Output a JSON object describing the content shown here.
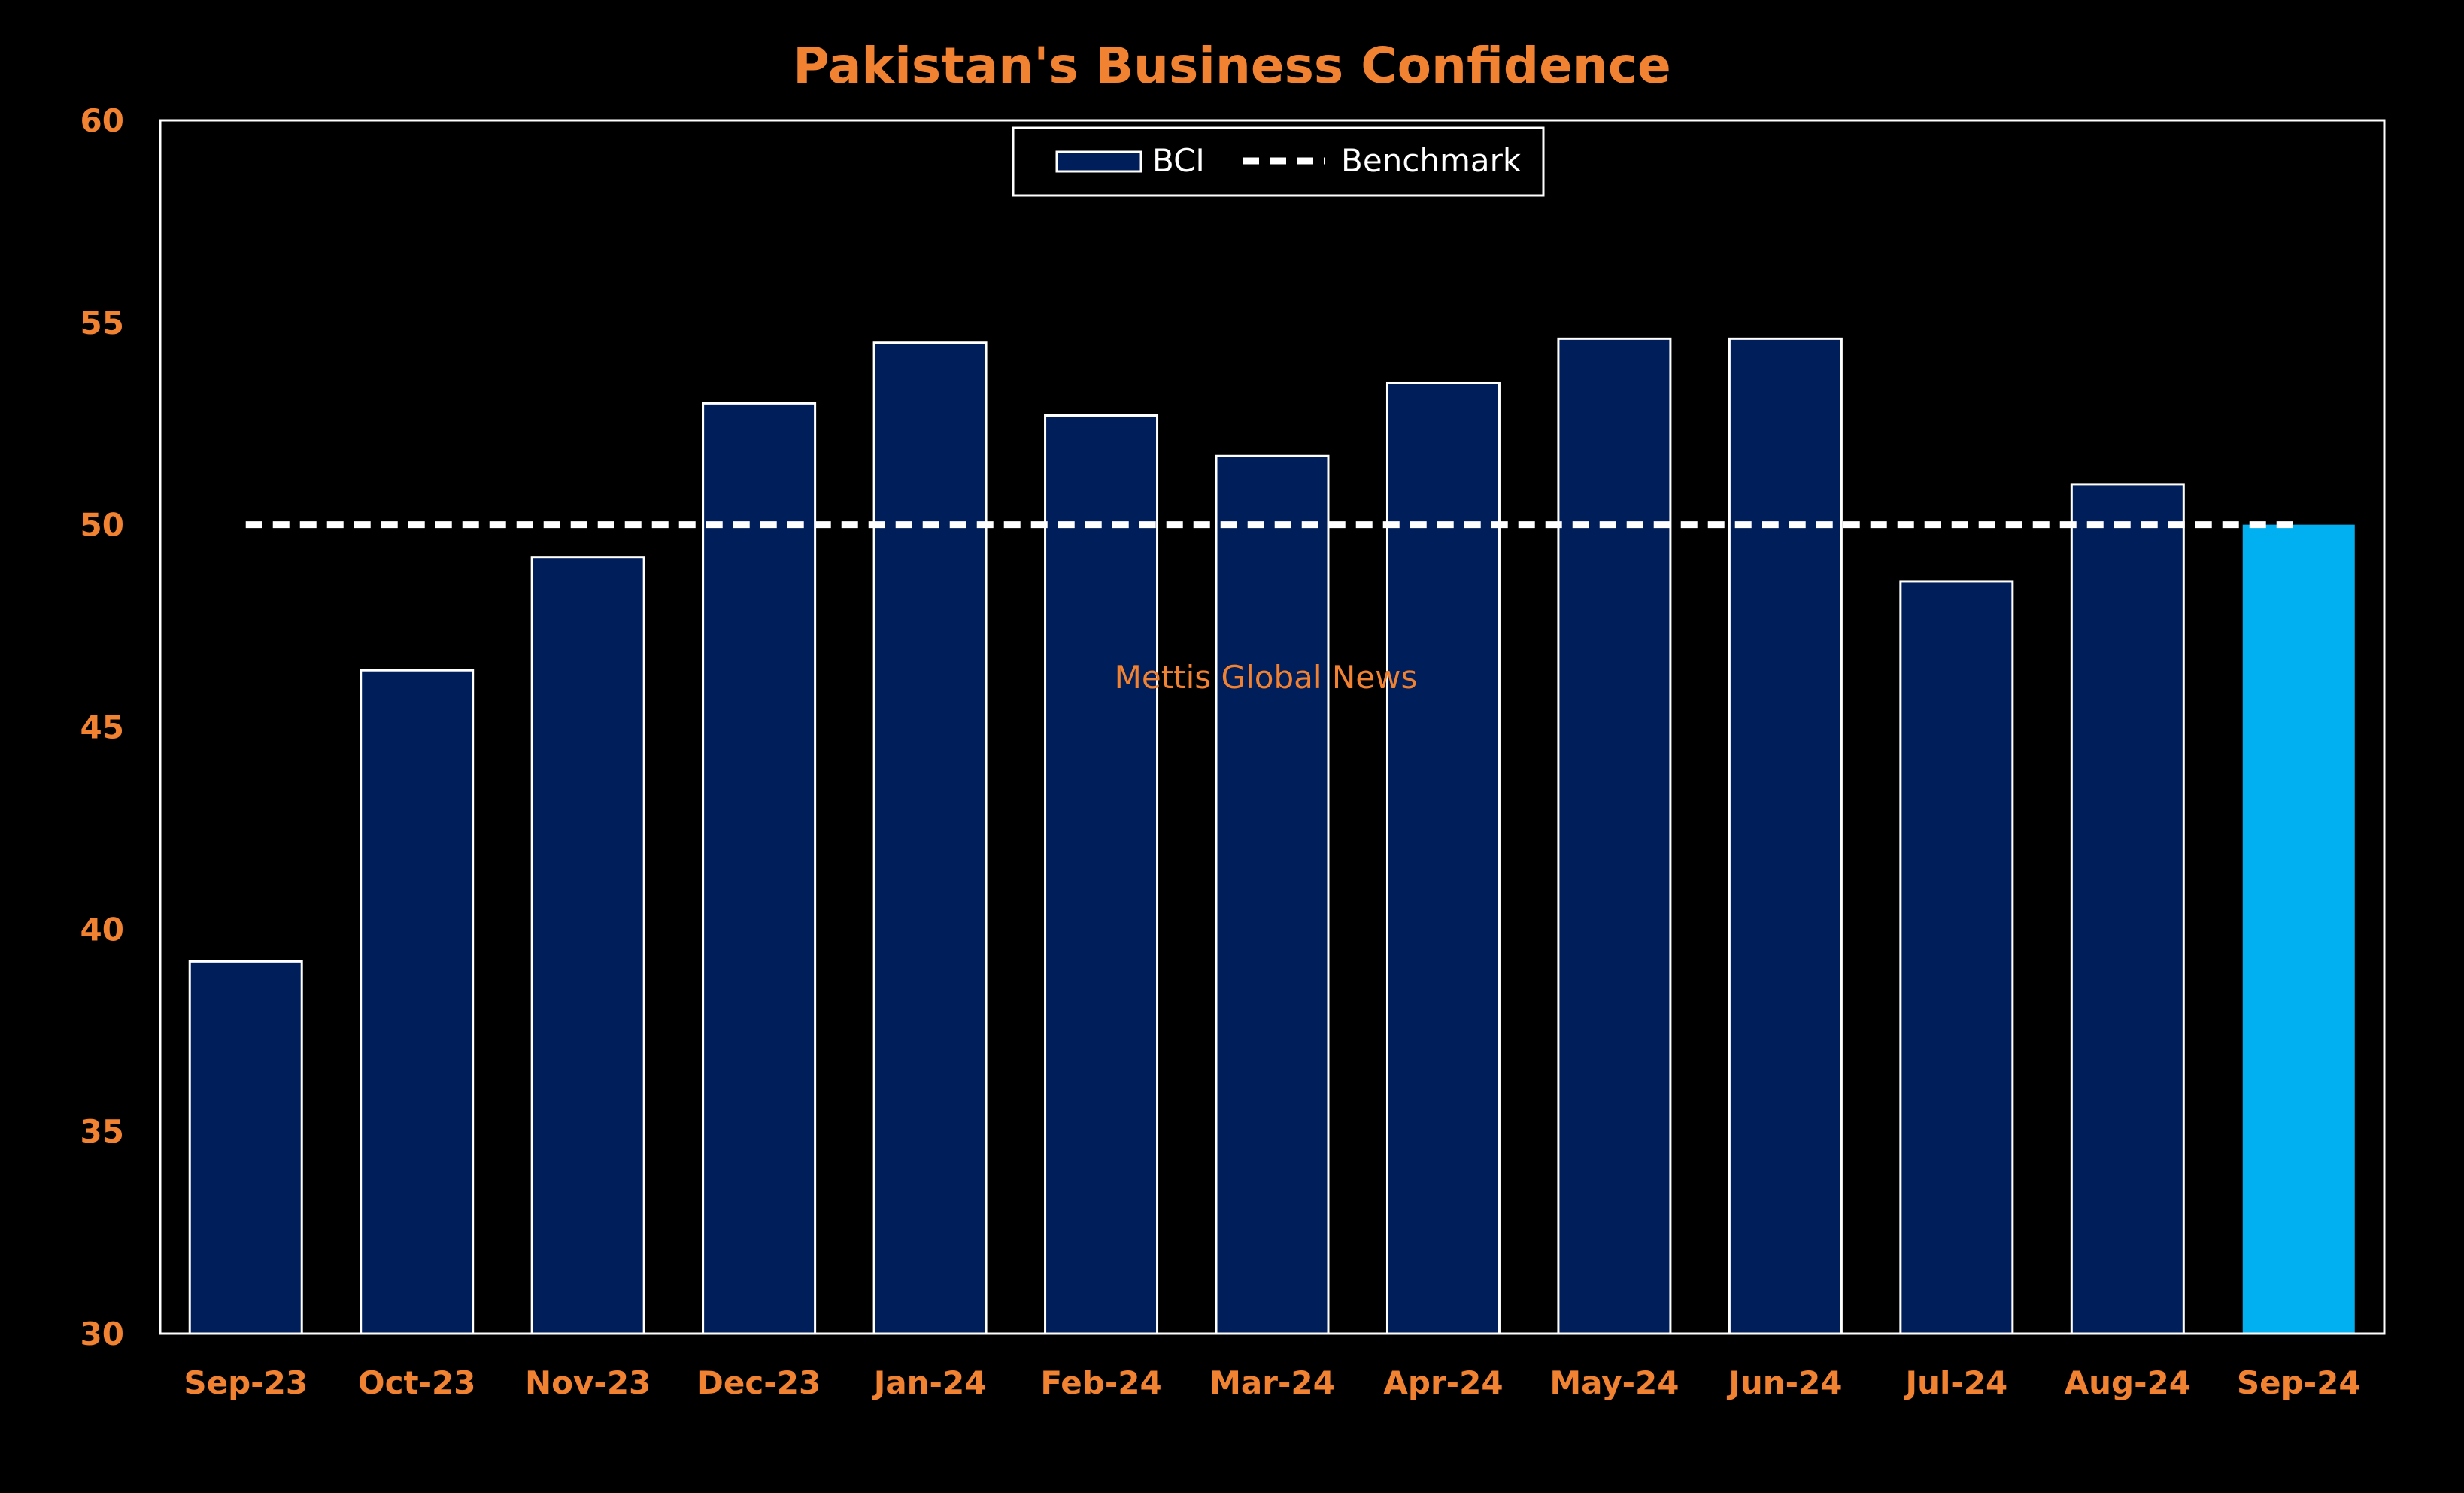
{
  "chart_data": {
    "type": "bar",
    "title": "Pakistan's Business Confidence",
    "xlabel": "",
    "ylabel": "",
    "categories": [
      "Sep-23",
      "Oct-23",
      "Nov-23",
      "Dec-23",
      "Jan-24",
      "Feb-24",
      "Mar-24",
      "Apr-24",
      "May-24",
      "Jun-24",
      "Jul-24",
      "Aug-24",
      "Sep-24"
    ],
    "series": [
      {
        "name": "BCI",
        "type": "bar",
        "values": [
          39.2,
          46.4,
          49.2,
          53.0,
          54.5,
          52.7,
          51.7,
          53.5,
          54.6,
          54.6,
          48.6,
          51.0,
          50.0
        ],
        "color": "#001E5A",
        "highlight_color": "#00B0F0",
        "highlight_category": "Sep-24"
      },
      {
        "name": "Benchmark",
        "type": "line",
        "style": "dashed",
        "values": [
          50,
          50,
          50,
          50,
          50,
          50,
          50,
          50,
          50,
          50,
          50,
          50,
          50
        ],
        "color": "#FFFFFF"
      }
    ],
    "ylim": [
      30,
      60
    ],
    "yticks": [
      "30",
      "35",
      "40",
      "45",
      "50",
      "55",
      "60"
    ],
    "grid": false,
    "legend_position": "top-center",
    "annotation": "Mettis Global News",
    "colors": {
      "background": "#000000",
      "text": "#F08232",
      "axis": "#FFFFFF"
    }
  }
}
